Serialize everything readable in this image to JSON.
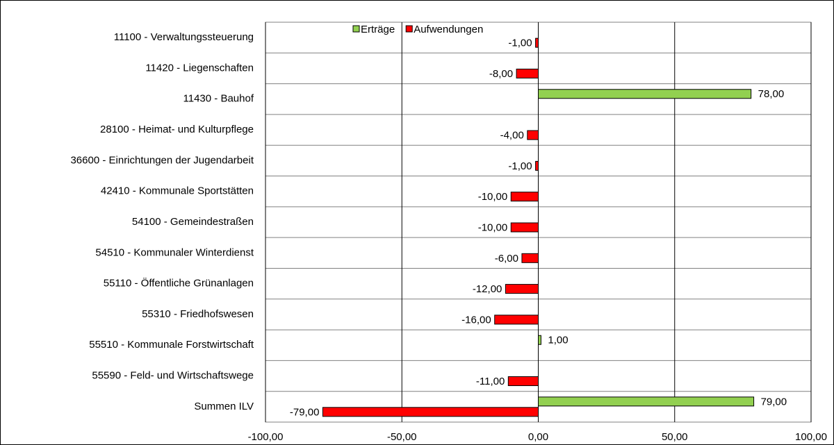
{
  "chart_data": {
    "type": "bar",
    "orientation": "horizontal",
    "categories": [
      "11100 - Verwaltungssteuerung",
      "11420 - Liegenschaften",
      "11430 - Bauhof",
      "28100 - Heimat- und Kulturpflege",
      "36600 - Einrichtungen der Jugendarbeit",
      "42410 - Kommunale Sportstätten",
      "54100 - Gemeindestraßen",
      "54510 - Kommunaler Winterdienst",
      "55110 - Öffentliche Grünanlagen",
      "55310 - Friedhofswesen",
      "55510 - Kommunale Forstwirtschaft",
      "55590 - Feld- und Wirtschaftswege",
      "Summen ILV"
    ],
    "series": [
      {
        "name": "Erträge",
        "color": "#92d050",
        "values": [
          null,
          null,
          78,
          null,
          null,
          null,
          null,
          null,
          null,
          null,
          1,
          null,
          79
        ],
        "value_labels": [
          null,
          null,
          "78,00",
          null,
          null,
          null,
          null,
          null,
          null,
          null,
          "1,00",
          null,
          "79,00"
        ]
      },
      {
        "name": "Aufwendungen",
        "color": "#ff0000",
        "values": [
          -1,
          -8,
          null,
          -4,
          -1,
          -10,
          -10,
          -6,
          -12,
          -16,
          null,
          -11,
          -79
        ],
        "value_labels": [
          "-1,00",
          "-8,00",
          null,
          "-4,00",
          "-1,00",
          "-10,00",
          "-10,00",
          "-6,00",
          "-12,00",
          "-16,00",
          null,
          "-11,00",
          "-79,00"
        ]
      }
    ],
    "xlim": [
      -100,
      100
    ],
    "xticks": [
      {
        "value": -100,
        "label": "-100,00"
      },
      {
        "value": -50,
        "label": "-50,00"
      },
      {
        "value": 0,
        "label": "0,00"
      },
      {
        "value": 50,
        "label": "50,00"
      },
      {
        "value": 100,
        "label": "100,00"
      }
    ],
    "grid": true,
    "legend": "top"
  }
}
